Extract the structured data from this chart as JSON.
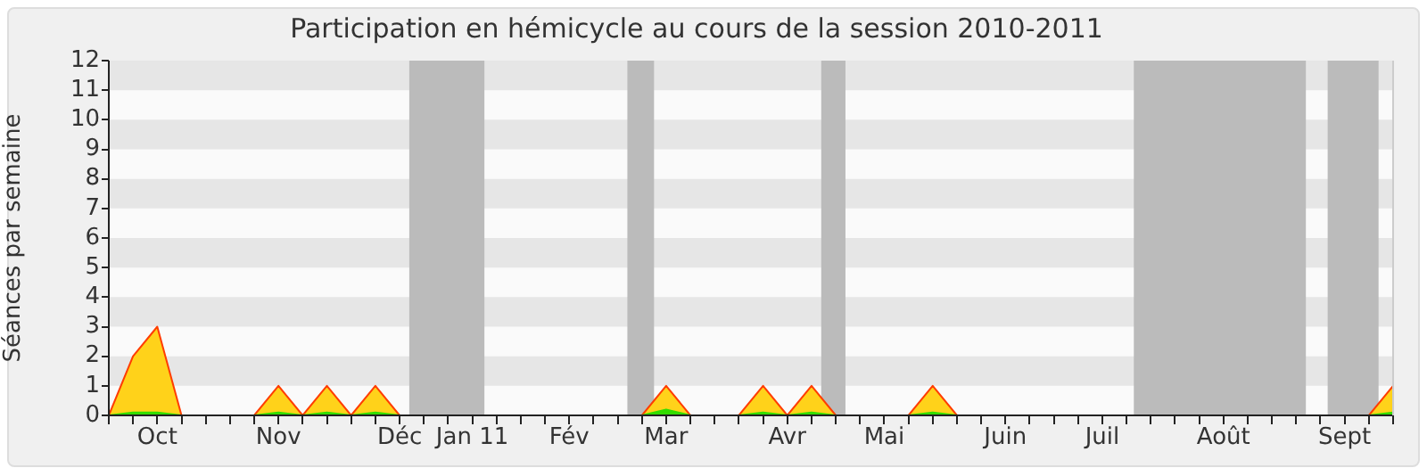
{
  "chart_data": {
    "type": "area",
    "title": "Participation en hémicycle au cours de la session 2010-2011",
    "ylabel": "Séances par semaine",
    "categories": [
      null,
      null,
      "Oct",
      null,
      null,
      null,
      null,
      "Nov",
      null,
      null,
      null,
      null,
      "Déc",
      null,
      null,
      "Jan 11",
      null,
      null,
      null,
      "Fév",
      null,
      null,
      null,
      "Mar",
      null,
      null,
      null,
      null,
      "Avr",
      null,
      null,
      null,
      "Mai",
      null,
      null,
      null,
      null,
      "Juin",
      null,
      null,
      null,
      "Juil",
      null,
      null,
      null,
      null,
      "Août",
      null,
      null,
      null,
      null,
      "Sept",
      null,
      null
    ],
    "series": [
      {
        "color": "#ffd21a",
        "values": [
          0,
          2,
          3,
          0,
          0,
          0,
          0,
          1,
          0,
          1,
          0,
          1,
          0,
          0,
          0,
          0,
          0,
          0,
          0,
          0,
          0,
          0,
          0,
          1,
          0,
          0,
          0,
          1,
          0,
          1,
          0,
          0,
          0,
          0,
          1,
          0,
          0,
          0,
          0,
          0,
          0,
          0,
          0,
          0,
          0,
          0,
          0,
          0,
          0,
          0,
          0,
          0,
          0,
          1
        ]
      },
      {
        "color": "#33dd00",
        "values": [
          0,
          0.1,
          0.1,
          0,
          0,
          0,
          0,
          0.1,
          0,
          0.1,
          0,
          0.1,
          0,
          0,
          0,
          0,
          0,
          0,
          0,
          0,
          0,
          0,
          0,
          0.2,
          0,
          0,
          0,
          0.1,
          0,
          0.1,
          0,
          0,
          0,
          0,
          0.1,
          0,
          0,
          0,
          0,
          0,
          0,
          0,
          0,
          0,
          0,
          0,
          0,
          0,
          0,
          0,
          0,
          0,
          0,
          0.1
        ]
      }
    ],
    "ylim": [
      0,
      12
    ],
    "yticks": [
      0,
      1,
      2,
      3,
      4,
      5,
      6,
      7,
      8,
      9,
      10,
      11,
      12
    ],
    "legend": false
  }
}
